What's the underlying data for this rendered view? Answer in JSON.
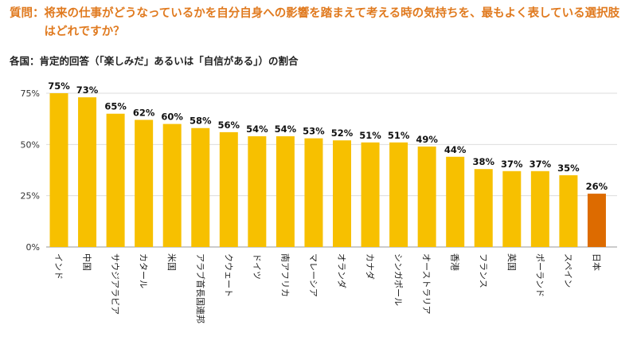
{
  "question": {
    "label": "質問：",
    "text": "将来の仕事がどうなっているかを自分自身への影響を踏まえて考える時の気持ちを、最もよく表している選択肢はどれですか？"
  },
  "chart_data": {
    "type": "bar",
    "title": "各国：肯定的回答（「楽しみだ」あるいは「自信がある」）の割合",
    "categories": [
      "インド",
      "中国",
      "サウジアラビア",
      "カタール",
      "米国",
      "アラブ首長国連邦",
      "クウェート",
      "ドイツ",
      "南アフリカ",
      "マレーシア",
      "オランダ",
      "カナダ",
      "シンガポール",
      "オーストラリア",
      "香港",
      "フランス",
      "英国",
      "ポーランド",
      "スペイン",
      "日本"
    ],
    "values": [
      75,
      73,
      65,
      62,
      60,
      58,
      56,
      54,
      54,
      53,
      52,
      51,
      51,
      49,
      44,
      38,
      37,
      37,
      35,
      26
    ],
    "value_labels": [
      "75%",
      "73%",
      "65%",
      "62%",
      "60%",
      "58%",
      "56%",
      "54%",
      "54%",
      "53%",
      "52%",
      "51%",
      "51%",
      "49%",
      "44%",
      "38%",
      "37%",
      "37%",
      "35%",
      "26%"
    ],
    "yticks": [
      {
        "value": 0,
        "label": "0%"
      },
      {
        "value": 25,
        "label": "25%"
      },
      {
        "value": 50,
        "label": "50%"
      },
      {
        "value": 75,
        "label": "75%"
      }
    ],
    "ylim": [
      0,
      75
    ],
    "grid": true,
    "colors": {
      "default": "#f7c000",
      "highlight": "#dd6b00",
      "grid": "#dddddd"
    },
    "highlight_index": 19
  }
}
